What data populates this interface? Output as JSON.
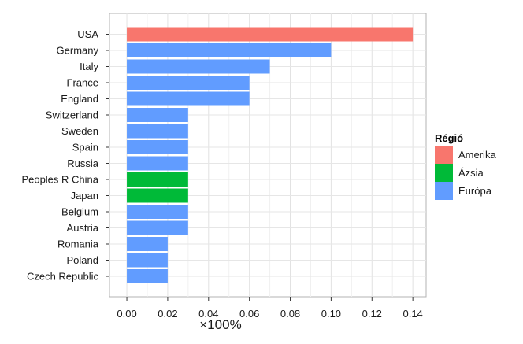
{
  "chart_data": {
    "type": "bar",
    "orientation": "horizontal",
    "categories": [
      "USA",
      "Germany",
      "Italy",
      "France",
      "England",
      "Switzerland",
      "Sweden",
      "Spain",
      "Russia",
      "Peoples R China",
      "Japan",
      "Belgium",
      "Austria",
      "Romania",
      "Poland",
      "Czech Republic"
    ],
    "values": [
      0.14,
      0.1,
      0.07,
      0.06,
      0.06,
      0.03,
      0.03,
      0.03,
      0.03,
      0.03,
      0.03,
      0.03,
      0.03,
      0.02,
      0.02,
      0.02
    ],
    "groups": [
      "Amerika",
      "Európa",
      "Európa",
      "Európa",
      "Európa",
      "Európa",
      "Európa",
      "Európa",
      "Európa",
      "Ázsia",
      "Ázsia",
      "Európa",
      "Európa",
      "Európa",
      "Európa",
      "Európa"
    ],
    "xlabel": "×100%",
    "ylabel": "",
    "xlim": [
      -0.0085,
      0.1465
    ],
    "xticks": [
      "0.00",
      "0.02",
      "0.04",
      "0.06",
      "0.08",
      "0.10",
      "0.12",
      "0.14"
    ],
    "grid": true,
    "legend": {
      "title": "Régió",
      "position": "right",
      "entries": [
        {
          "name": "Amerika",
          "color": "#F8766D"
        },
        {
          "name": "Ázsia",
          "color": "#00BA38"
        },
        {
          "name": "Európa",
          "color": "#619CFF"
        }
      ]
    }
  }
}
